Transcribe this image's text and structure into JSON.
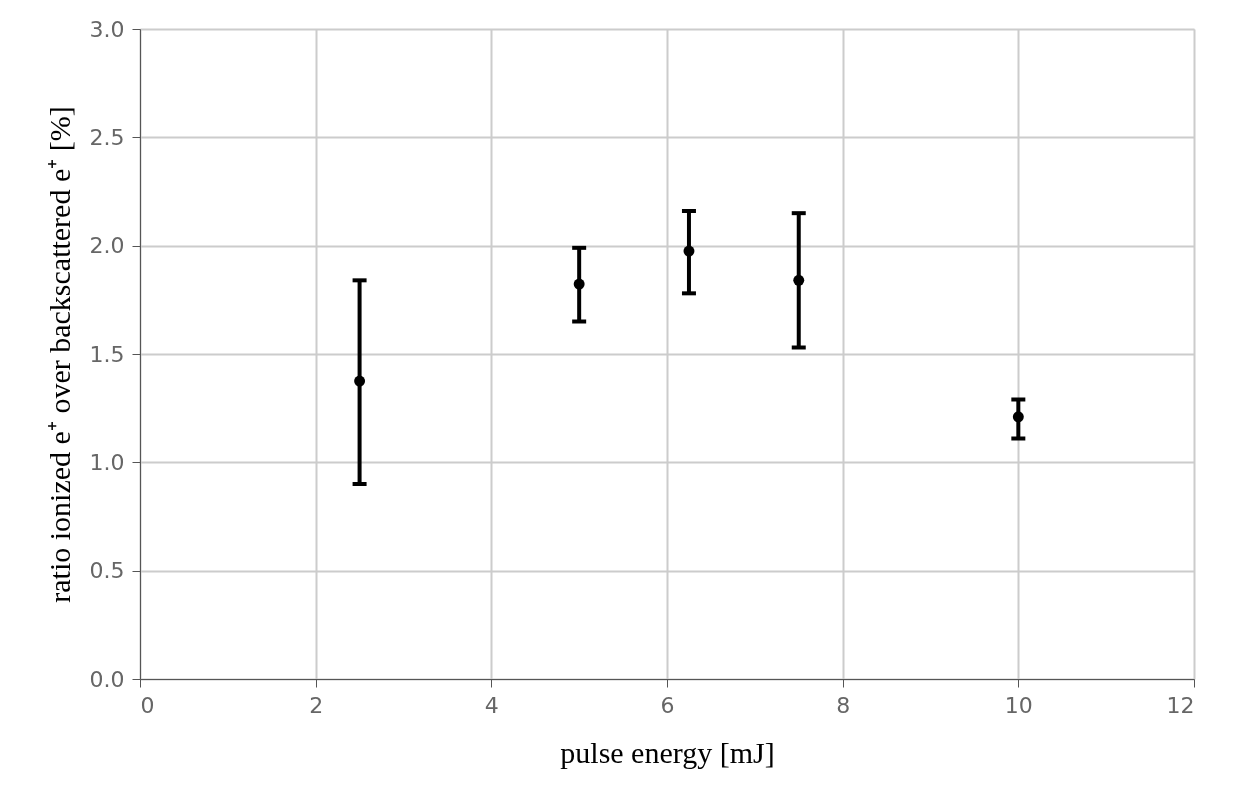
{
  "chart_data": {
    "type": "scatter",
    "xlabel": "pulse energy [mJ]",
    "ylabel": "ratio ionized e⁺ over backscattered e⁺ [%]",
    "x": [
      2.5,
      5,
      6.25,
      7.5,
      10
    ],
    "values": [
      1.375,
      1.823,
      1.975,
      1.84,
      1.21
    ],
    "errors": [
      [
        0.9,
        1.84
      ],
      [
        1.65,
        1.99
      ],
      [
        1.78,
        2.16
      ],
      [
        1.53,
        2.15
      ],
      [
        1.11,
        1.29
      ]
    ],
    "color": "#000000",
    "marker": "circle",
    "xlim": [
      0,
      12
    ],
    "xticks": [
      0,
      2,
      4,
      6,
      8,
      10,
      12
    ],
    "ylim": [
      0,
      3.0
    ],
    "yticks": [
      {
        "value": 0,
        "label": "0.0"
      },
      {
        "value": 0.5,
        "label": "0.5"
      },
      {
        "value": 1,
        "label": "1.0"
      },
      {
        "value": 1.5,
        "label": "1.5"
      },
      {
        "value": 2,
        "label": "2.0"
      },
      {
        "value": 2.5,
        "label": "2.5"
      },
      {
        "value": 3,
        "label": "3.0"
      }
    ],
    "grid": true
  }
}
